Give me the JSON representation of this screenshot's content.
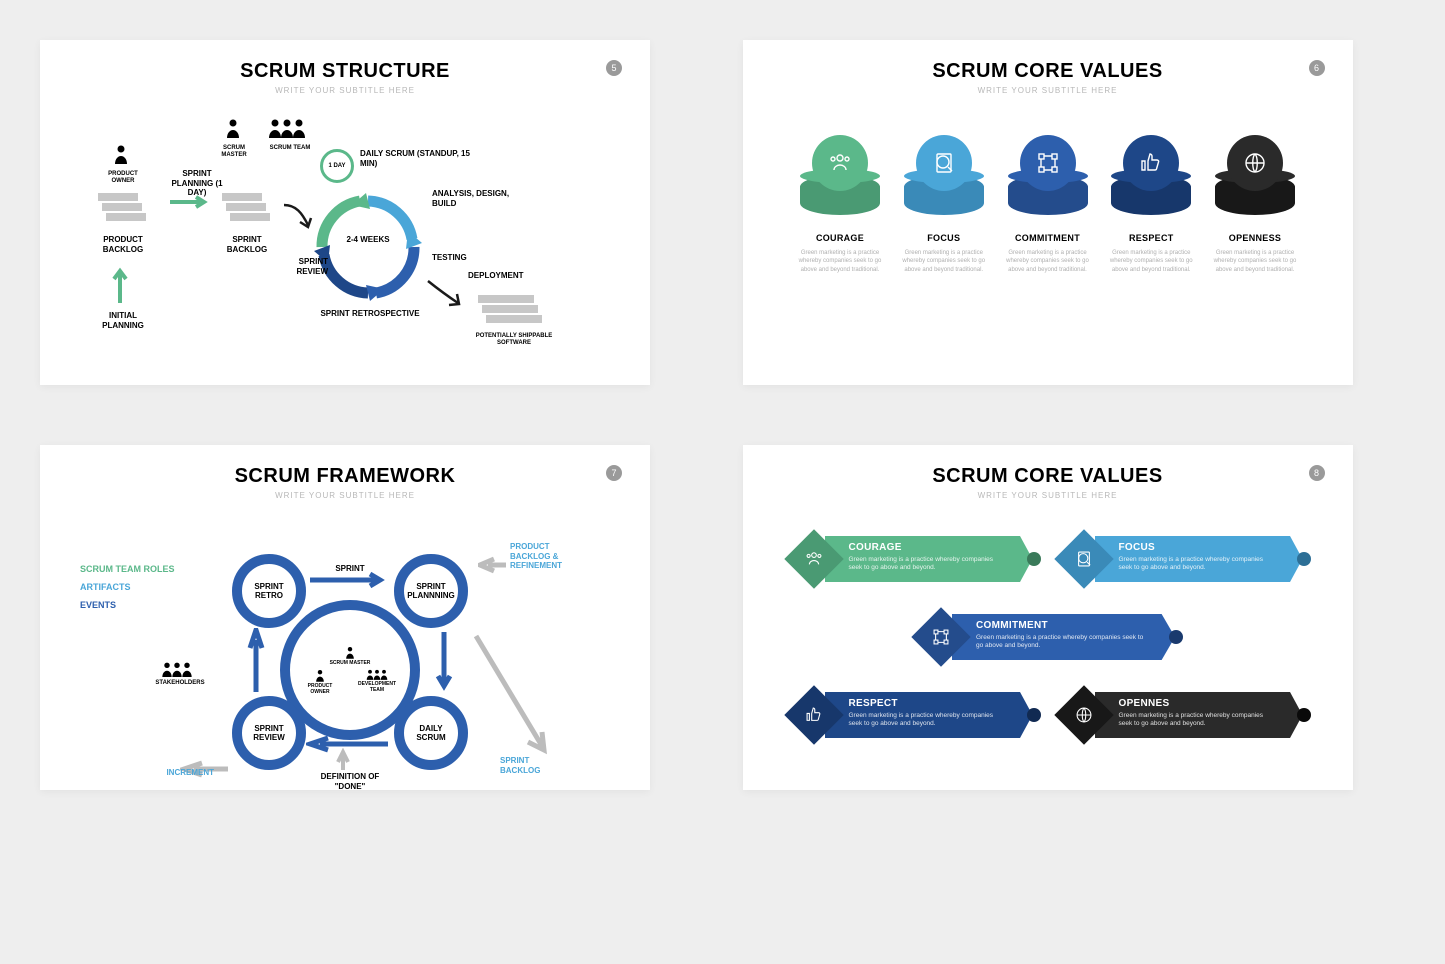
{
  "colors": {
    "green": "#5bb88a",
    "lightblue": "#4aa6d8",
    "blue": "#2d5fad",
    "darkblue": "#1e4788",
    "black": "#2a2a2a",
    "grey": "#bcbcbc",
    "lightgrey_text": "#b0b0b0"
  },
  "slide1": {
    "num": "5",
    "title": "SCRUM STRUCTURE",
    "subtitle": "WRITE YOUR SUBTITLE HERE",
    "product_owner": "PRODUCT OWNER",
    "scrum_master": "SCRUM MASTER",
    "scrum_team": "SCRUM TEAM",
    "product_backlog": "PRODUCT BACKLOG",
    "initial_planning": "INITIAL PLANNING",
    "sprint_planning": "SPRINT PLANNING (1 DAY)",
    "sprint_backlog": "SPRINT BACKLOG",
    "one_day": "1 DAY",
    "daily_scrum": "DAILY SCRUM (STANDUP, 15 MIN)",
    "weeks": "2-4 WEEKS",
    "analysis": "ANALYSIS, DESIGN, BUILD",
    "testing": "TESTING",
    "sprint_review": "SPRINT REVIEW",
    "sprint_retro": "SPRINT RETROSPECTIVE",
    "deployment": "DEPLOYMENT",
    "shippable": "POTENTIALLY SHIPPABLE SOFTWARE"
  },
  "slide2": {
    "num": "6",
    "title": "SCRUM CORE VALUES",
    "subtitle": "WRITE YOUR SUBTITLE HERE",
    "desc": "Green marketing is a practice whereby companies seek to go above and beyond traditional.",
    "pillars": [
      {
        "label": "COURAGE",
        "color": "#5bb88a",
        "darker": "#4a9a73",
        "icon": "users"
      },
      {
        "label": "FOCUS",
        "color": "#4aa6d8",
        "darker": "#3a8ab8",
        "icon": "search"
      },
      {
        "label": "COMMITMENT",
        "color": "#2d5fad",
        "darker": "#244c8c",
        "icon": "nodes"
      },
      {
        "label": "RESPECT",
        "color": "#1e4788",
        "darker": "#17376b",
        "icon": "thumb"
      },
      {
        "label": "OPENNESS",
        "color": "#2a2a2a",
        "darker": "#181818",
        "icon": "globe"
      }
    ]
  },
  "slide3": {
    "num": "7",
    "title": "SCRUM FRAMEWORK",
    "subtitle": "WRITE YOUR SUBTITLE HERE",
    "legend_roles": "SCRUM TEAM ROLES",
    "legend_artifacts": "ARTIFACTS",
    "legend_events": "EVENTS",
    "stakeholders": "STAKEHOLDERS",
    "sprint": "SPRINT",
    "sprint_retro": "SPRINT RETRO",
    "sprint_planning": "SPRINT PLANNNING",
    "sprint_review": "SPRINT REVIEW",
    "daily_scrum": "DAILY SCRUM",
    "scrum_master": "SCRUM MASTER",
    "product_owner": "PRODUCT OWNER",
    "dev_team": "DEVELOPMENT TEAM",
    "product_backlog": "PRODUCT BACKLOG & REFINEMENT",
    "sprint_backlog": "SPRINT BACKLOG",
    "increment": "INCREMENT",
    "definition_done": "DEFINITION OF \"DONE\""
  },
  "slide4": {
    "num": "8",
    "title": "SCRUM CORE VALUES",
    "subtitle": "WRITE YOUR SUBTITLE HERE",
    "desc": "Green marketing is a practice whereby companies seek to go above and beyond.",
    "ribbons": [
      {
        "label": "COURAGE",
        "color": "#5bb88a",
        "darker": "#4a9a73",
        "dot": "#3a7a5a",
        "icon": "users"
      },
      {
        "label": "FOCUS",
        "color": "#4aa6d8",
        "darker": "#3a8ab8",
        "dot": "#2d6f96",
        "icon": "search"
      },
      {
        "label": "COMMITMENT",
        "color": "#2d5fad",
        "darker": "#244c8c",
        "dot": "#1a3a6e",
        "icon": "nodes"
      },
      {
        "label": "RESPECT",
        "color": "#1e4788",
        "darker": "#17376b",
        "dot": "#112a52",
        "icon": "thumb"
      },
      {
        "label": "OPENNES",
        "color": "#2a2a2a",
        "darker": "#181818",
        "dot": "#0a0a0a",
        "icon": "globe"
      }
    ]
  }
}
